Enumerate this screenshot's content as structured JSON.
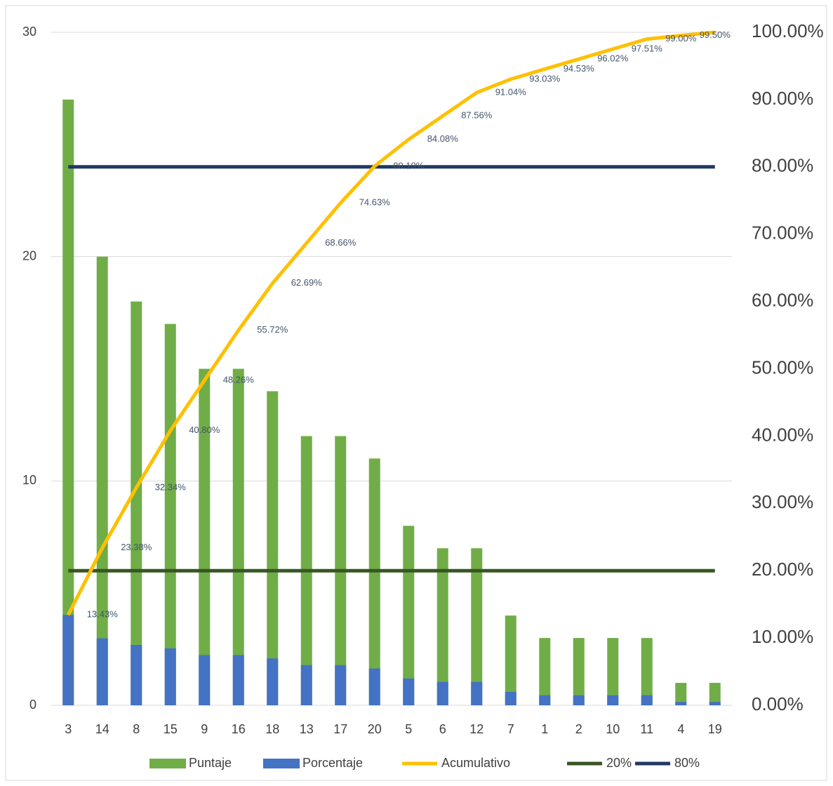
{
  "chart_data": {
    "type": "bar",
    "categories": [
      "3",
      "14",
      "8",
      "15",
      "9",
      "16",
      "18",
      "13",
      "17",
      "20",
      "5",
      "6",
      "12",
      "7",
      "1",
      "2",
      "10",
      "11",
      "4",
      "19"
    ],
    "series": [
      {
        "name": "Puntaje",
        "type": "bar",
        "color": "#70ad47",
        "values": [
          27,
          20,
          18,
          17,
          15,
          15,
          14,
          12,
          12,
          11,
          8,
          7,
          7,
          4,
          3,
          3,
          3,
          3,
          1,
          1
        ]
      },
      {
        "name": "Porcentaje",
        "type": "bar",
        "axis": "y2",
        "color": "#4472c4",
        "values": [
          13.43,
          9.95,
          8.96,
          8.46,
          7.46,
          7.46,
          6.97,
          5.97,
          5.97,
          5.47,
          3.98,
          3.48,
          3.48,
          1.99,
          1.49,
          1.49,
          1.49,
          1.49,
          0.5,
          0.5
        ]
      },
      {
        "name": "20%",
        "type": "line",
        "axis": "y2",
        "color": "#375623",
        "values": [
          20,
          20,
          20,
          20,
          20,
          20,
          20,
          20,
          20,
          20,
          20,
          20,
          20,
          20,
          20,
          20,
          20,
          20,
          20,
          20
        ]
      },
      {
        "name": "80%",
        "type": "line",
        "axis": "y2",
        "color": "#203864",
        "values": [
          80,
          80,
          80,
          80,
          80,
          80,
          80,
          80,
          80,
          80,
          80,
          80,
          80,
          80,
          80,
          80,
          80,
          80,
          80,
          80
        ]
      },
      {
        "name": "Acumulativo",
        "type": "line",
        "axis": "y2",
        "color": "#ffc000",
        "values": [
          13.43,
          23.38,
          32.34,
          40.8,
          48.26,
          55.72,
          62.69,
          68.66,
          74.63,
          80.1,
          84.08,
          87.56,
          91.04,
          93.03,
          94.53,
          96.02,
          97.51,
          99.0,
          99.5,
          100
        ],
        "value_labels": [
          "13.43%",
          "23.38%",
          "32.34%",
          "40.80%",
          "48.26%",
          "55.72%",
          "62.69%",
          "68.66%",
          "74.63%",
          "80.10%",
          "84.08%",
          "87.56%",
          "91.04%",
          "93.03%",
          "94.53%",
          "96.02%",
          "97.51%",
          "99.00%",
          "99.50%",
          null
        ]
      }
    ],
    "ylim": [
      0,
      30
    ],
    "yticks": [
      0,
      10,
      20,
      30
    ],
    "y2lim": [
      0,
      100
    ],
    "y2ticks": [
      {
        "value": 0,
        "label": "0.00%"
      },
      {
        "value": 10,
        "label": "10.00%"
      },
      {
        "value": 20,
        "label": "20.00%"
      },
      {
        "value": 30,
        "label": "30.00%"
      },
      {
        "value": 40,
        "label": "40.00%"
      },
      {
        "value": 50,
        "label": "50.00%"
      },
      {
        "value": 60,
        "label": "60.00%"
      },
      {
        "value": 70,
        "label": "70.00%"
      },
      {
        "value": 80,
        "label": "80.00%"
      },
      {
        "value": 90,
        "label": "90.00%"
      },
      {
        "value": 100,
        "label": "100.00%"
      }
    ],
    "grid": true
  }
}
